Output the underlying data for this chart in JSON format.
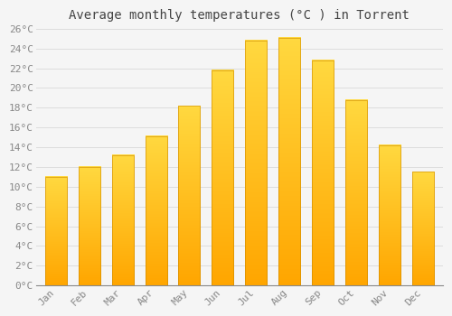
{
  "title": "Average monthly temperatures (°C ) in Torrent",
  "months": [
    "Jan",
    "Feb",
    "Mar",
    "Apr",
    "May",
    "Jun",
    "Jul",
    "Aug",
    "Sep",
    "Oct",
    "Nov",
    "Dec"
  ],
  "values": [
    11.0,
    12.0,
    13.2,
    15.1,
    18.2,
    21.8,
    24.8,
    25.1,
    22.8,
    18.8,
    14.2,
    11.5
  ],
  "bar_color_bottom": "#FFA500",
  "bar_color_top": "#FFD966",
  "background_color": "#f5f5f5",
  "grid_color": "#dddddd",
  "ylim": [
    0,
    26
  ],
  "ytick_step": 2,
  "title_fontsize": 10,
  "tick_fontsize": 8,
  "font_family": "monospace",
  "title_color": "#444444",
  "tick_color": "#888888"
}
